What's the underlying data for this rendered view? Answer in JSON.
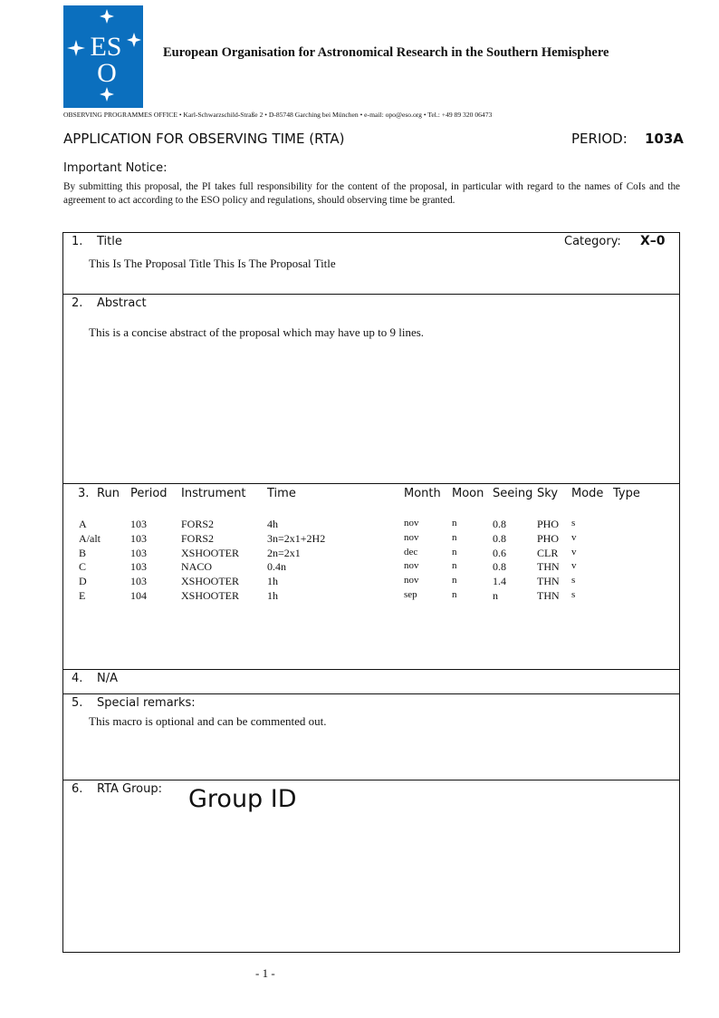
{
  "header": {
    "logo_text": "ESO",
    "org": "European Organisation for Astronomical Research in the Southern Hemisphere",
    "address": "OBSERVING PROGRAMMES OFFICE • Karl-Schwarzschild-Straße 2 • D-85748 Garching bei München • e-mail: opo@eso.org • Tel.: +49 89 320 06473",
    "logo_color": "#0b6fbe"
  },
  "form": {
    "title": "APPLICATION FOR OBSERVING TIME (RTA)",
    "period_label": "PERIOD:",
    "period_value": "103A"
  },
  "notice": {
    "heading": "Important Notice:",
    "text": "By submitting this proposal, the PI takes full responsibility for the content of the proposal, in particular with regard to the names of CoIs and the agreement to act according to the ESO policy and regulations, should observing time be granted."
  },
  "sections": {
    "title": {
      "num": "1.",
      "label": "Title",
      "category_label": "Category:",
      "category_value": "X–0",
      "text": "This Is The Proposal Title This Is The Proposal Title"
    },
    "abstract": {
      "num": "2.",
      "label": "Abstract",
      "text": "This is a concise abstract of the proposal which may have up to 9 lines."
    },
    "runs": {
      "num": "3.",
      "headers": [
        "Run",
        "Period",
        "Instrument",
        "Time",
        "Month",
        "Moon",
        "Seeing",
        "Sky",
        "Mode",
        "Type"
      ],
      "rows": [
        [
          "A",
          "103",
          "FORS2",
          "4h",
          "nov",
          "n",
          "0.8",
          "PHO",
          "s",
          ""
        ],
        [
          "A/alt",
          "103",
          "FORS2",
          "3n=2x1+2H2",
          "nov",
          "n",
          "0.8",
          "PHO",
          "v",
          ""
        ],
        [
          "B",
          "103",
          "XSHOOTER",
          "2n=2x1",
          "dec",
          "n",
          "0.6",
          "CLR",
          "v",
          ""
        ],
        [
          "C",
          "103",
          "NACO",
          "0.4n",
          "nov",
          "n",
          "0.8",
          "THN",
          "v",
          ""
        ],
        [
          "D",
          "103",
          "XSHOOTER",
          "1h",
          "nov",
          "n",
          "1.4",
          "THN",
          "s",
          ""
        ],
        [
          "E",
          "104",
          "XSHOOTER",
          "1h",
          "sep",
          "n",
          "n",
          "THN",
          "s",
          ""
        ]
      ]
    },
    "na": {
      "num": "4.",
      "label": "N/A"
    },
    "remarks": {
      "num": "5.",
      "label": "Special remarks:",
      "text": "This macro is optional and can be commented out."
    },
    "group": {
      "num": "6.",
      "label": "RTA Group:",
      "value": "Group ID"
    }
  },
  "footer": {
    "page": "- 1 -"
  }
}
